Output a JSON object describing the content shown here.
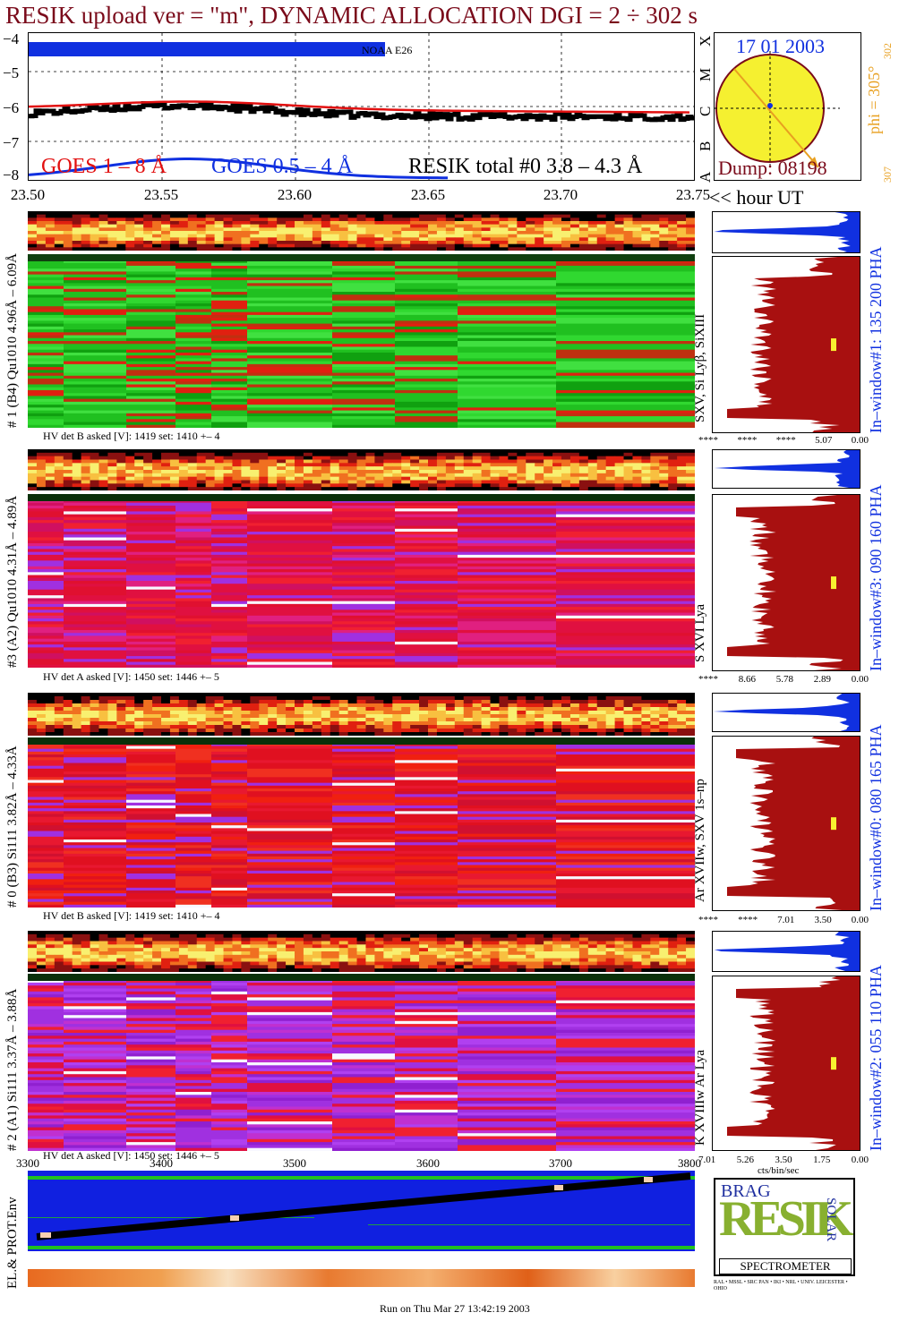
{
  "header": {
    "title": "RESIK upload ver = \"m\", DYNAMIC ALLOCATION  DGI =   2 ÷ 302 s"
  },
  "lightcurve": {
    "y_ticks": [
      "−4",
      "−5",
      "−6",
      "−7",
      "−8"
    ],
    "class_letters": [
      "X",
      "M",
      "C",
      "B",
      "A"
    ],
    "noaa_label": "NOAA E26",
    "legend": {
      "goes_long": "GOES 1 – 8 Å",
      "goes_short": "GOES 0.5 – 4 Å",
      "resik_total": "RESIK total #0  3.8 – 4.3 Å"
    },
    "colors": {
      "goes_long": "#e21010",
      "goes_short": "#1030e0",
      "resik": "#000000",
      "noaa_bar": "#1030e0"
    }
  },
  "time_axis": {
    "ticks": [
      "23.50",
      "23.55",
      "23.60",
      "23.65",
      "23.70",
      "23.75"
    ],
    "suffix": "<< hour UT"
  },
  "orbit": {
    "date": "17 01 2003",
    "phi_label": "phi = 305°",
    "phi_top": "302",
    "phi_bottom": "307",
    "dump": "Dump: 08198"
  },
  "channels": [
    {
      "id": "ch1",
      "left_label": "# 1 (B4) Qu1010 4.96Å – 6.09Å",
      "lines_label": "SXV, Si Lyβ, SiXIII",
      "window_label": "In–window#1:  135 200 PHA",
      "hv_text": "HV det B asked [V]:  1419 set:  1410  +–   4",
      "hist_ticks": [
        "****",
        "****",
        "****",
        "5.07",
        "0.00"
      ]
    },
    {
      "id": "ch3",
      "left_label": "#3 (A2) Qu1010  4.31Å – 4.89Å",
      "lines_label": "S XVI Lya",
      "window_label": "In–window#3:  090 160 PHA",
      "hv_text": "HV det A asked [V]:  1450 set:  1446  +–    5",
      "hist_ticks": [
        "****",
        "8.66",
        "5.78",
        "2.89",
        "0.00"
      ]
    },
    {
      "id": "ch0",
      "left_label": "# 0 (B3) Si111  3.82Å – 4.33Å",
      "lines_label": "Ar XVIIw,  SXV 1s–np",
      "window_label": "In–window#0:  080 165 PHA",
      "hv_text": "HV det B asked [V]:  1419 set:  1410  +–   4",
      "hist_ticks": [
        "****",
        "****",
        "7.01",
        "3.50",
        "0.00"
      ]
    },
    {
      "id": "ch2",
      "left_label": "# 2 (A1) Si111  3.37Å – 3.88Å",
      "lines_label": "K XVIIIw  Ar Lya",
      "window_label": "In–window#2:  055 110 PHA",
      "hv_text": "HV det A asked [V]:  1450 set:  1446  +–    5",
      "hist_ticks": [
        "7.01",
        "5.26",
        "3.50",
        "1.75",
        "0.00"
      ],
      "hist_xlabel": "cts/bin/sec"
    }
  ],
  "bottom_axis": {
    "ticks": [
      "3300",
      "3400",
      "3500",
      "3600",
      "3700",
      "3800"
    ]
  },
  "env_label": "EL.& PROT.Env",
  "logo": {
    "top_letters": "BRAG",
    "main_letters": "RESIK",
    "side_letters": "SOLAR",
    "banner": "SPECTROMETER",
    "fine_print": "RAL • MSSL • SRC PAN • IKI • NRL • UNIV. LEICESTER • OHIO"
  },
  "footer": {
    "run_text": "Run on Thu Mar 27 13:42:19 2003"
  }
}
